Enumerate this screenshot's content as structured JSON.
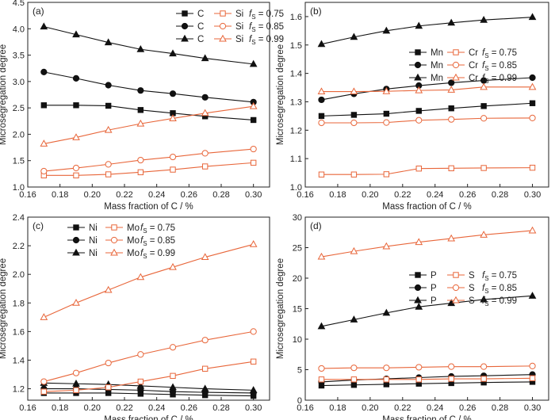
{
  "colors": {
    "black": "#111111",
    "orange": "#E8663A"
  },
  "chart_data": [
    {
      "type": "line",
      "panel_label": "(a)",
      "xlabel": "Mass fraction of C / %",
      "ylabel": "Microsegregation degree",
      "xlim": [
        0.16,
        0.31
      ],
      "ylim": [
        1.0,
        4.5
      ],
      "xticks": [
        "0.16",
        "0.18",
        "0.20",
        "0.22",
        "0.24",
        "0.26",
        "0.28",
        "0.30"
      ],
      "yticks": [
        "1.0",
        "1.5",
        "2.0",
        "2.5",
        "3.0",
        "3.5",
        "4.0",
        "4.5"
      ],
      "legend_position": "top-right",
      "legend_rows": [
        {
          "el1": "C",
          "el2": "Si",
          "fs": "= 0.75"
        },
        {
          "el1": "C",
          "el2": "Si",
          "fs": "= 0.85"
        },
        {
          "el1": "C",
          "el2": "Si",
          "fs": "= 0.99"
        }
      ],
      "x": [
        0.17,
        0.19,
        0.21,
        0.23,
        0.25,
        0.27,
        0.3
      ],
      "series": [
        {
          "element": "C",
          "fs": "0.75",
          "marker": "square",
          "filled": true,
          "color": "black",
          "values": [
            2.55,
            2.55,
            2.54,
            2.46,
            2.4,
            2.34,
            2.27
          ]
        },
        {
          "element": "C",
          "fs": "0.85",
          "marker": "circle",
          "filled": true,
          "color": "black",
          "values": [
            3.18,
            3.06,
            2.93,
            2.83,
            2.77,
            2.7,
            2.61
          ]
        },
        {
          "element": "C",
          "fs": "0.99",
          "marker": "triangle",
          "filled": true,
          "color": "black",
          "values": [
            4.04,
            3.89,
            3.74,
            3.61,
            3.53,
            3.44,
            3.33
          ]
        },
        {
          "element": "Si",
          "fs": "0.75",
          "marker": "square",
          "filled": false,
          "color": "orange",
          "values": [
            1.22,
            1.22,
            1.24,
            1.28,
            1.33,
            1.39,
            1.46
          ]
        },
        {
          "element": "Si",
          "fs": "0.85",
          "marker": "circle",
          "filled": false,
          "color": "orange",
          "values": [
            1.3,
            1.36,
            1.43,
            1.51,
            1.57,
            1.64,
            1.72
          ]
        },
        {
          "element": "Si",
          "fs": "0.99",
          "marker": "triangle",
          "filled": false,
          "color": "orange",
          "values": [
            1.82,
            1.94,
            2.08,
            2.2,
            2.3,
            2.4,
            2.53
          ]
        }
      ]
    },
    {
      "type": "line",
      "panel_label": "(b)",
      "xlabel": "Mass fraction of C / %",
      "ylabel": "Microsegregation degree",
      "xlim": [
        0.16,
        0.31
      ],
      "ylim": [
        1.0,
        1.65
      ],
      "xticks": [
        "0.16",
        "0.18",
        "0.20",
        "0.22",
        "0.24",
        "0.26",
        "0.28",
        "0.30"
      ],
      "yticks": [
        "1.0",
        "1.1",
        "1.2",
        "1.3",
        "1.4",
        "1.5",
        "1.6"
      ],
      "legend_position": "right",
      "legend_rows": [
        {
          "el1": "Mn",
          "el2": "Cr",
          "fs": "= 0.75"
        },
        {
          "el1": "Mn",
          "el2": "Cr",
          "fs": "= 0.85"
        },
        {
          "el1": "Mn",
          "el2": "Cr",
          "fs": "= 0.99"
        }
      ],
      "x": [
        0.17,
        0.19,
        0.21,
        0.23,
        0.25,
        0.27,
        0.3
      ],
      "series": [
        {
          "element": "Mn",
          "fs": "0.75",
          "marker": "square",
          "filled": true,
          "color": "black",
          "values": [
            1.25,
            1.254,
            1.258,
            1.268,
            1.277,
            1.285,
            1.295
          ]
        },
        {
          "element": "Mn",
          "fs": "0.85",
          "marker": "circle",
          "filled": true,
          "color": "black",
          "values": [
            1.307,
            1.328,
            1.345,
            1.357,
            1.367,
            1.375,
            1.385
          ]
        },
        {
          "element": "Mn",
          "fs": "0.99",
          "marker": "triangle",
          "filled": true,
          "color": "black",
          "values": [
            1.503,
            1.528,
            1.55,
            1.567,
            1.578,
            1.588,
            1.598
          ]
        },
        {
          "element": "Cr",
          "fs": "0.75",
          "marker": "square",
          "filled": false,
          "color": "orange",
          "values": [
            1.044,
            1.044,
            1.045,
            1.065,
            1.066,
            1.067,
            1.068
          ]
        },
        {
          "element": "Cr",
          "fs": "0.85",
          "marker": "circle",
          "filled": false,
          "color": "orange",
          "values": [
            1.226,
            1.226,
            1.227,
            1.235,
            1.238,
            1.242,
            1.243
          ]
        },
        {
          "element": "Cr",
          "fs": "0.99",
          "marker": "triangle",
          "filled": false,
          "color": "orange",
          "values": [
            1.336,
            1.336,
            1.337,
            1.34,
            1.342,
            1.352,
            1.352
          ]
        }
      ]
    },
    {
      "type": "line",
      "panel_label": "(c)",
      "xlabel": "Mass fraction of C / %",
      "ylabel": "Microsegregation degree",
      "xlim": [
        0.16,
        0.31
      ],
      "ylim": [
        1.12,
        2.4
      ],
      "xticks": [
        "0.16",
        "0.18",
        "0.20",
        "0.22",
        "0.24",
        "0.26",
        "0.28",
        "0.30"
      ],
      "yticks": [
        "1.2",
        "1.4",
        "1.6",
        "1.8",
        "2.0",
        "2.2",
        "2.4"
      ],
      "legend_position": "top-left",
      "legend_rows": [
        {
          "el1": "Ni",
          "el2": "Mo",
          "fs": "= 0.75"
        },
        {
          "el1": "Ni",
          "el2": "Mo",
          "fs": "= 0.85"
        },
        {
          "el1": "Ni",
          "el2": "Mo",
          "fs": "= 0.99"
        }
      ],
      "x": [
        0.17,
        0.19,
        0.21,
        0.23,
        0.25,
        0.27,
        0.3
      ],
      "series": [
        {
          "element": "Ni",
          "fs": "0.75",
          "marker": "square",
          "filled": true,
          "color": "black",
          "values": [
            1.17,
            1.17,
            1.17,
            1.165,
            1.16,
            1.155,
            1.15
          ]
        },
        {
          "element": "Ni",
          "fs": "0.85",
          "marker": "circle",
          "filled": true,
          "color": "black",
          "values": [
            1.2,
            1.2,
            1.195,
            1.19,
            1.18,
            1.175,
            1.17
          ]
        },
        {
          "element": "Ni",
          "fs": "0.99",
          "marker": "triangle",
          "filled": true,
          "color": "black",
          "values": [
            1.24,
            1.235,
            1.23,
            1.22,
            1.21,
            1.2,
            1.19
          ]
        },
        {
          "element": "Mo",
          "fs": "0.75",
          "marker": "square",
          "filled": false,
          "color": "orange",
          "values": [
            1.18,
            1.19,
            1.21,
            1.25,
            1.29,
            1.34,
            1.39
          ]
        },
        {
          "element": "Mo",
          "fs": "0.85",
          "marker": "circle",
          "filled": false,
          "color": "orange",
          "values": [
            1.25,
            1.31,
            1.38,
            1.44,
            1.49,
            1.54,
            1.6
          ]
        },
        {
          "element": "Mo",
          "fs": "0.99",
          "marker": "triangle",
          "filled": false,
          "color": "orange",
          "values": [
            1.7,
            1.8,
            1.89,
            1.98,
            2.05,
            2.12,
            2.21
          ]
        }
      ]
    },
    {
      "type": "line",
      "panel_label": "(d)",
      "xlabel": "Mass fraction of C / %",
      "ylabel": "Microsegregation degree",
      "xlim": [
        0.16,
        0.31
      ],
      "ylim": [
        0,
        30
      ],
      "xticks": [
        "0.16",
        "0.18",
        "0.20",
        "0.22",
        "0.24",
        "0.26",
        "0.28",
        "0.30"
      ],
      "yticks": [
        "0",
        "5",
        "10",
        "15",
        "20",
        "25",
        "30"
      ],
      "legend_position": "right",
      "legend_rows": [
        {
          "el1": "P",
          "el2": "S",
          "fs": "= 0.75"
        },
        {
          "el1": "P",
          "el2": "S",
          "fs": "= 0.85"
        },
        {
          "el1": "P",
          "el2": "S",
          "fs": "= 0.99"
        }
      ],
      "x": [
        0.17,
        0.19,
        0.21,
        0.23,
        0.25,
        0.27,
        0.3
      ],
      "series": [
        {
          "element": "P",
          "fs": "0.75",
          "marker": "square",
          "filled": true,
          "color": "black",
          "values": [
            2.4,
            2.5,
            2.6,
            2.7,
            2.8,
            2.9,
            3.0
          ]
        },
        {
          "element": "P",
          "fs": "0.85",
          "marker": "circle",
          "filled": true,
          "color": "black",
          "values": [
            3.0,
            3.3,
            3.5,
            3.7,
            3.9,
            4.0,
            4.2
          ]
        },
        {
          "element": "P",
          "fs": "0.99",
          "marker": "triangle",
          "filled": true,
          "color": "black",
          "values": [
            12.1,
            13.2,
            14.3,
            15.3,
            15.9,
            16.5,
            17.1
          ]
        },
        {
          "element": "S",
          "fs": "0.75",
          "marker": "square",
          "filled": false,
          "color": "orange",
          "values": [
            3.4,
            3.4,
            3.4,
            3.4,
            3.5,
            3.5,
            3.6
          ]
        },
        {
          "element": "S",
          "fs": "0.85",
          "marker": "circle",
          "filled": false,
          "color": "orange",
          "values": [
            5.2,
            5.3,
            5.3,
            5.4,
            5.5,
            5.5,
            5.6
          ]
        },
        {
          "element": "S",
          "fs": "0.99",
          "marker": "triangle",
          "filled": false,
          "color": "orange",
          "values": [
            23.5,
            24.4,
            25.2,
            25.9,
            26.5,
            27.1,
            27.8
          ]
        }
      ]
    }
  ]
}
